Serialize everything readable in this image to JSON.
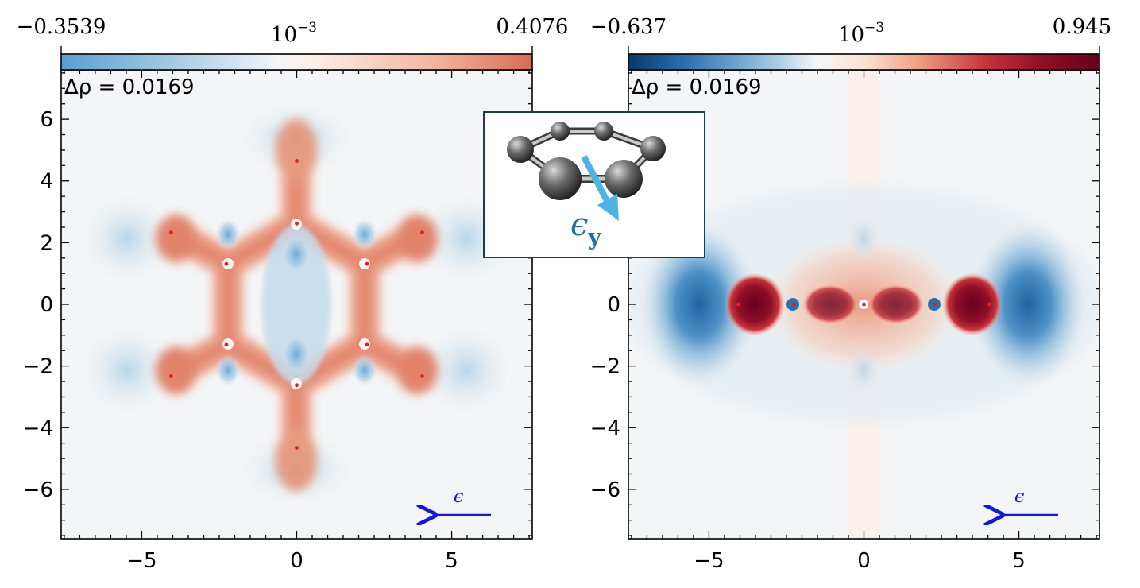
{
  "chart_data": [
    {
      "type": "heatmap",
      "panel": "left",
      "annotation": "Δρ = 0.0169",
      "colorbar": {
        "min_label": "−0.3539",
        "max_label": "0.4076",
        "scale_label": "10",
        "scale_exp": "−3",
        "cmap": "RdBu_r"
      },
      "xlim": [
        -7.6,
        7.6
      ],
      "ylim": [
        -7.6,
        7.6
      ],
      "xticks": [
        -5,
        0,
        5
      ],
      "xtick_labels": [
        "−5",
        "0",
        "5"
      ],
      "yticks": [
        -6,
        -4,
        -2,
        0,
        2,
        4,
        6
      ],
      "ytick_labels": [
        "−6",
        "−4",
        "−2",
        "0",
        "2",
        "4",
        "6"
      ],
      "atoms": [
        {
          "x": 0,
          "y": 4.65
        },
        {
          "x": 0,
          "y": 2.62
        },
        {
          "x": -4.05,
          "y": 2.33
        },
        {
          "x": 4.05,
          "y": 2.33
        },
        {
          "x": -2.27,
          "y": 1.31
        },
        {
          "x": 2.27,
          "y": 1.31
        },
        {
          "x": -2.27,
          "y": -1.31
        },
        {
          "x": 2.27,
          "y": -1.31
        },
        {
          "x": -4.05,
          "y": -2.33
        },
        {
          "x": 4.05,
          "y": -2.33
        },
        {
          "x": 0,
          "y": -2.62
        },
        {
          "x": 0,
          "y": -4.65
        }
      ],
      "field_arrow_label": "ϵ"
    },
    {
      "type": "heatmap",
      "panel": "right",
      "annotation": "Δρ = 0.0169",
      "colorbar": {
        "min_label": "−0.637",
        "max_label": "0.945",
        "scale_label": "10",
        "scale_exp": "−3",
        "cmap": "RdBu_r"
      },
      "xlim": [
        -7.6,
        7.6
      ],
      "ylim": [
        -7.6,
        7.6
      ],
      "xticks": [
        -5,
        0,
        5
      ],
      "xtick_labels": [
        "−5",
        "0",
        "5"
      ],
      "yticks": [
        -6,
        -4,
        -2,
        0
      ],
      "ytick_labels": [
        "−6",
        "−4",
        "−2",
        "0"
      ],
      "atoms": [
        {
          "x": -4.05,
          "y": 0
        },
        {
          "x": -2.27,
          "y": 0
        },
        {
          "x": 0,
          "y": 0
        },
        {
          "x": 2.27,
          "y": 0
        },
        {
          "x": 4.05,
          "y": 0
        }
      ],
      "field_arrow_label": "ϵ"
    }
  ],
  "inset": {
    "polarization_label": "ϵ",
    "polarization_subscript": "y"
  },
  "colors": {
    "atom_dot": "#e0201c",
    "arrow": "#1515e0",
    "inset_arrow": "#4fb3e4",
    "inset_border": "#1d3d4f",
    "text": "#000000"
  }
}
